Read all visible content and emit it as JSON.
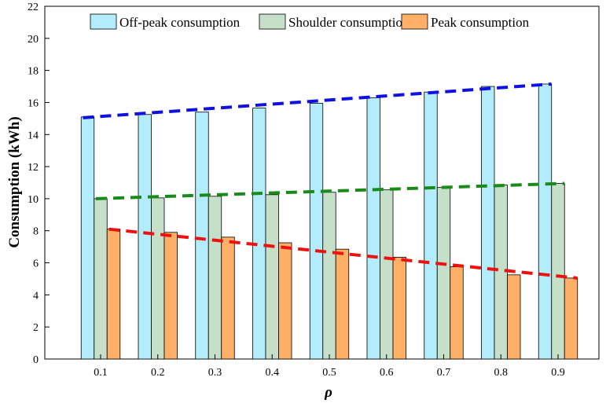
{
  "chart_data": {
    "type": "bar",
    "categories": [
      "0.1",
      "0.2",
      "0.3",
      "0.4",
      "0.5",
      "0.6",
      "0.7",
      "0.8",
      "0.9"
    ],
    "series": [
      {
        "name": "Off-peak consumption",
        "color": "#b3ecfa",
        "values": [
          15.1,
          15.25,
          15.4,
          15.65,
          15.95,
          16.3,
          16.65,
          17.0,
          17.15
        ]
      },
      {
        "name": "Shoulder consumption",
        "color": "#c6dfc8",
        "values": [
          10.0,
          10.05,
          10.15,
          10.25,
          10.4,
          10.55,
          10.7,
          10.85,
          10.95
        ]
      },
      {
        "name": "Peak consumption",
        "color": "#ffb066",
        "values": [
          8.1,
          7.9,
          7.6,
          7.25,
          6.85,
          6.35,
          5.75,
          5.25,
          5.05
        ]
      }
    ],
    "trend_lines": [
      {
        "series": "Off-peak consumption",
        "color": "#1010e0",
        "from": 15.05,
        "to": 17.15
      },
      {
        "series": "Shoulder consumption",
        "color": "#1a8a1a",
        "from": 10.0,
        "to": 10.95
      },
      {
        "series": "Peak consumption",
        "color": "#ee1111",
        "from": 8.1,
        "to": 5.05
      }
    ],
    "xlabel": "ρ",
    "ylabel": "Consumption (kWh)",
    "ylim": [
      0,
      22
    ],
    "yticks": [
      "0",
      "2",
      "4",
      "6",
      "8",
      "10",
      "12",
      "14",
      "16",
      "18",
      "20",
      "22"
    ],
    "grid": false,
    "legend_position": "top"
  }
}
